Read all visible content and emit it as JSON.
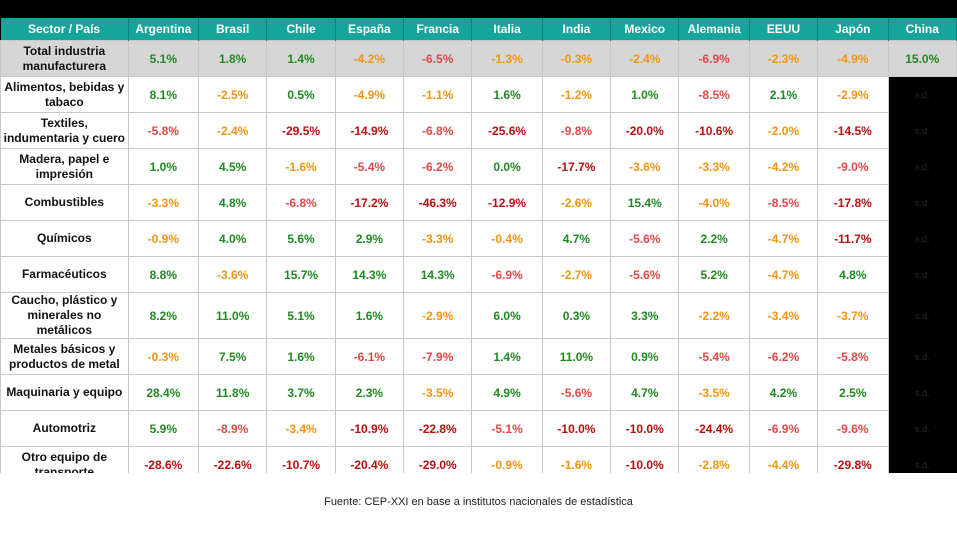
{
  "chart_data": {
    "type": "table",
    "columns": [
      "Sector / País",
      "Argentina",
      "Brasil",
      "Chile",
      "España",
      "Francia",
      "Italia",
      "India",
      "Mexico",
      "Alemania",
      "EEUU",
      "Japón",
      "China"
    ],
    "rows": [
      {
        "sector": "Total industria manufacturera",
        "values": [
          "5.1%",
          "1.8%",
          "1.4%",
          "-4.2%",
          "-6.5%",
          "-1.3%",
          "-0.3%",
          "-2.4%",
          "-6.9%",
          "-2.3%",
          "-4.9%",
          "15.0%"
        ]
      },
      {
        "sector": "Alimentos, bebidas y tabaco",
        "values": [
          "8.1%",
          "-2.5%",
          "0.5%",
          "-4.9%",
          "-1.1%",
          "1.6%",
          "-1.2%",
          "1.0%",
          "-8.5%",
          "2.1%",
          "-2.9%",
          "s.d."
        ]
      },
      {
        "sector": "Textiles, indumentaria y cuero",
        "values": [
          "-5.8%",
          "-2.4%",
          "-29.5%",
          "-14.9%",
          "-6.8%",
          "-25.6%",
          "-9.8%",
          "-20.0%",
          "-10.6%",
          "-2.0%",
          "-14.5%",
          "s.d."
        ]
      },
      {
        "sector": "Madera, papel e impresión",
        "values": [
          "1.0%",
          "4.5%",
          "-1.6%",
          "-5.4%",
          "-6.2%",
          "0.0%",
          "-17.7%",
          "-3.6%",
          "-3.3%",
          "-4.2%",
          "-9.0%",
          "s.d."
        ]
      },
      {
        "sector": "Combustibles",
        "values": [
          "-3.3%",
          "4.8%",
          "-6.8%",
          "-17.2%",
          "-46.3%",
          "-12.9%",
          "-2.6%",
          "15.4%",
          "-4.0%",
          "-8.5%",
          "-17.8%",
          "s.d."
        ]
      },
      {
        "sector": "Químicos",
        "values": [
          "-0.9%",
          "4.0%",
          "5.6%",
          "2.9%",
          "-3.3%",
          "-0.4%",
          "4.7%",
          "-5.6%",
          "2.2%",
          "-4.7%",
          "-11.7%",
          "s.d."
        ]
      },
      {
        "sector": "Farmacéuticos",
        "values": [
          "8.8%",
          "-3.6%",
          "15.7%",
          "14.3%",
          "14.3%",
          "-6.9%",
          "-2.7%",
          "-5.6%",
          "5.2%",
          "-4.7%",
          "4.8%",
          "s.d."
        ]
      },
      {
        "sector": "Caucho, plástico y minerales no metálicos",
        "values": [
          "8.2%",
          "11.0%",
          "5.1%",
          "1.6%",
          "-2.9%",
          "6.0%",
          "0.3%",
          "3.3%",
          "-2.2%",
          "-3.4%",
          "-3.7%",
          "s.d."
        ]
      },
      {
        "sector": "Metales básicos y productos de metal",
        "values": [
          "-0.3%",
          "7.5%",
          "1.6%",
          "-6.1%",
          "-7.9%",
          "1.4%",
          "11.0%",
          "0.9%",
          "-5.4%",
          "-6.2%",
          "-5.8%",
          "s.d."
        ]
      },
      {
        "sector": "Maquinaria y equipo",
        "values": [
          "28.4%",
          "11.8%",
          "3.7%",
          "2.3%",
          "-3.5%",
          "4.9%",
          "-5.6%",
          "4.7%",
          "-3.5%",
          "4.2%",
          "2.5%",
          "s.d."
        ]
      },
      {
        "sector": "Automotriz",
        "values": [
          "5.9%",
          "-8.9%",
          "-3.4%",
          "-10.9%",
          "-22.8%",
          "-5.1%",
          "-10.0%",
          "-10.0%",
          "-24.4%",
          "-6.9%",
          "-9.6%",
          "s.d."
        ]
      },
      {
        "sector": "Otro equipo de transporte",
        "values": [
          "-28.6%",
          "-22.6%",
          "-10.7%",
          "-20.4%",
          "-29.0%",
          "-0.9%",
          "-1.6%",
          "-10.0%",
          "-2.8%",
          "-4.4%",
          "-29.8%",
          "s.d."
        ]
      }
    ],
    "colors": {
      "header_bg": "#16a59a",
      "positive": "#1f8a1f",
      "mild_negative": "#f29412",
      "negative": "#e04848",
      "strong_negative": "#b80f0f"
    }
  },
  "footer": {
    "source": "Fuente: CEP-XXI en base a institutos nacionales de estadística"
  }
}
